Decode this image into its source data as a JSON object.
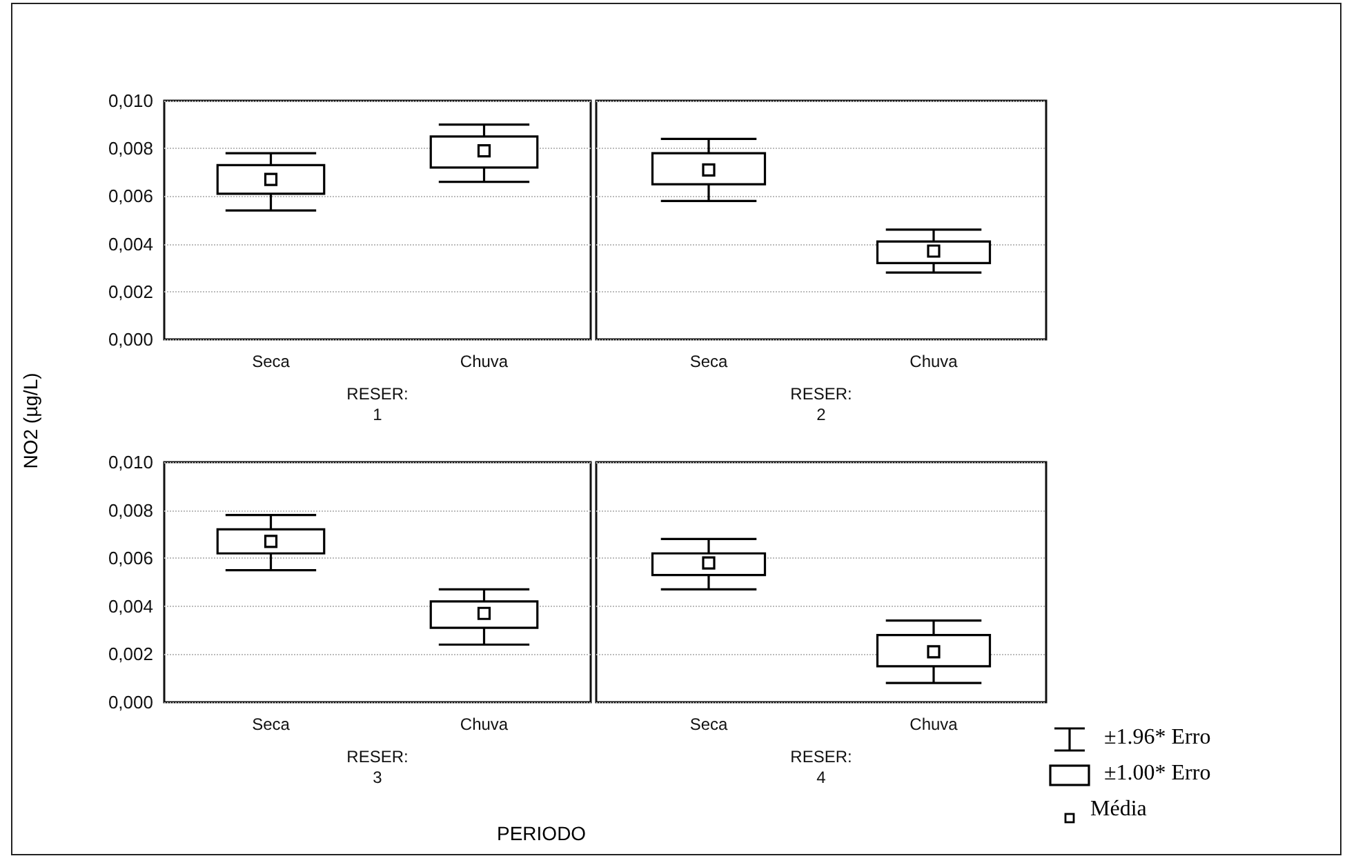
{
  "chart_data": [
    {
      "type": "box",
      "ylabel": "NO2 (µg/L)",
      "xlabel": "RESER:\n1",
      "categories": [
        "Seca",
        "Chuva"
      ],
      "ylim": [
        0,
        0.01
      ],
      "yticks": [
        {
          "value": 0,
          "label": "0,000"
        },
        {
          "value": 0.002,
          "label": "0,002"
        },
        {
          "value": 0.004,
          "label": "0,004"
        },
        {
          "value": 0.006,
          "label": "0,006"
        },
        {
          "value": 0.008,
          "label": "0,008"
        },
        {
          "value": 0.01,
          "label": "0,010"
        }
      ],
      "grid": "y",
      "series": [
        {
          "color": "#000000",
          "boxes": [
            {
              "low": 0.0054,
              "q1": 0.0061,
              "median": 0.0067,
              "q3": 0.0073,
              "high": 0.0078
            },
            {
              "low": 0.0066,
              "q1": 0.0072,
              "median": 0.0079,
              "q3": 0.0085,
              "high": 0.009
            }
          ]
        }
      ]
    },
    {
      "type": "box",
      "xlabel": "RESER:\n2",
      "categories": [
        "Seca",
        "Chuva"
      ],
      "ylim": [
        0,
        0.01
      ],
      "yticks": [
        0,
        0.002,
        0.004,
        0.006,
        0.008,
        0.01
      ],
      "tick_labels": "x",
      "grid": "y",
      "series": [
        {
          "color": "#000000",
          "boxes": [
            {
              "low": 0.0058,
              "q1": 0.0065,
              "median": 0.0071,
              "q3": 0.0078,
              "high": 0.0084
            },
            {
              "low": 0.0028,
              "q1": 0.0032,
              "median": 0.0037,
              "q3": 0.0041,
              "high": 0.0046
            }
          ]
        }
      ]
    },
    {
      "type": "box",
      "xlabel": "RESER:\n3",
      "categories": [
        "Seca",
        "Chuva"
      ],
      "ylim": [
        0,
        0.01
      ],
      "yticks": [
        {
          "value": 0,
          "label": "0,000"
        },
        {
          "value": 0.002,
          "label": "0,002"
        },
        {
          "value": 0.004,
          "label": "0,004"
        },
        {
          "value": 0.006,
          "label": "0,006"
        },
        {
          "value": 0.008,
          "label": "0,008"
        },
        {
          "value": 0.01,
          "label": "0,010"
        }
      ],
      "grid": "y",
      "annotations": [
        "PERIODO"
      ],
      "series": [
        {
          "color": "#000000",
          "boxes": [
            {
              "low": 0.0055,
              "q1": 0.0062,
              "median": 0.0067,
              "q3": 0.0072,
              "high": 0.0078
            },
            {
              "low": 0.0024,
              "q1": 0.0031,
              "median": 0.0037,
              "q3": 0.0042,
              "high": 0.0047
            }
          ]
        }
      ]
    },
    {
      "type": "box",
      "xlabel": "RESER:\n4",
      "categories": [
        "Seca",
        "Chuva"
      ],
      "ylim": [
        0,
        0.01
      ],
      "yticks": [
        0,
        0.002,
        0.004,
        0.006,
        0.008,
        0.01
      ],
      "tick_labels": "x",
      "grid": "y",
      "annotations": [
        "±1.96* Erro",
        "±1.00* Erro",
        "Média"
      ],
      "series": [
        {
          "color": "#000000",
          "boxes": [
            {
              "low": 0.0047,
              "q1": 0.0053,
              "median": 0.0058,
              "q3": 0.0062,
              "high": 0.0068
            },
            {
              "low": 0.0008,
              "q1": 0.0015,
              "median": 0.0021,
              "q3": 0.0028,
              "high": 0.0034
            }
          ]
        }
      ]
    }
  ]
}
